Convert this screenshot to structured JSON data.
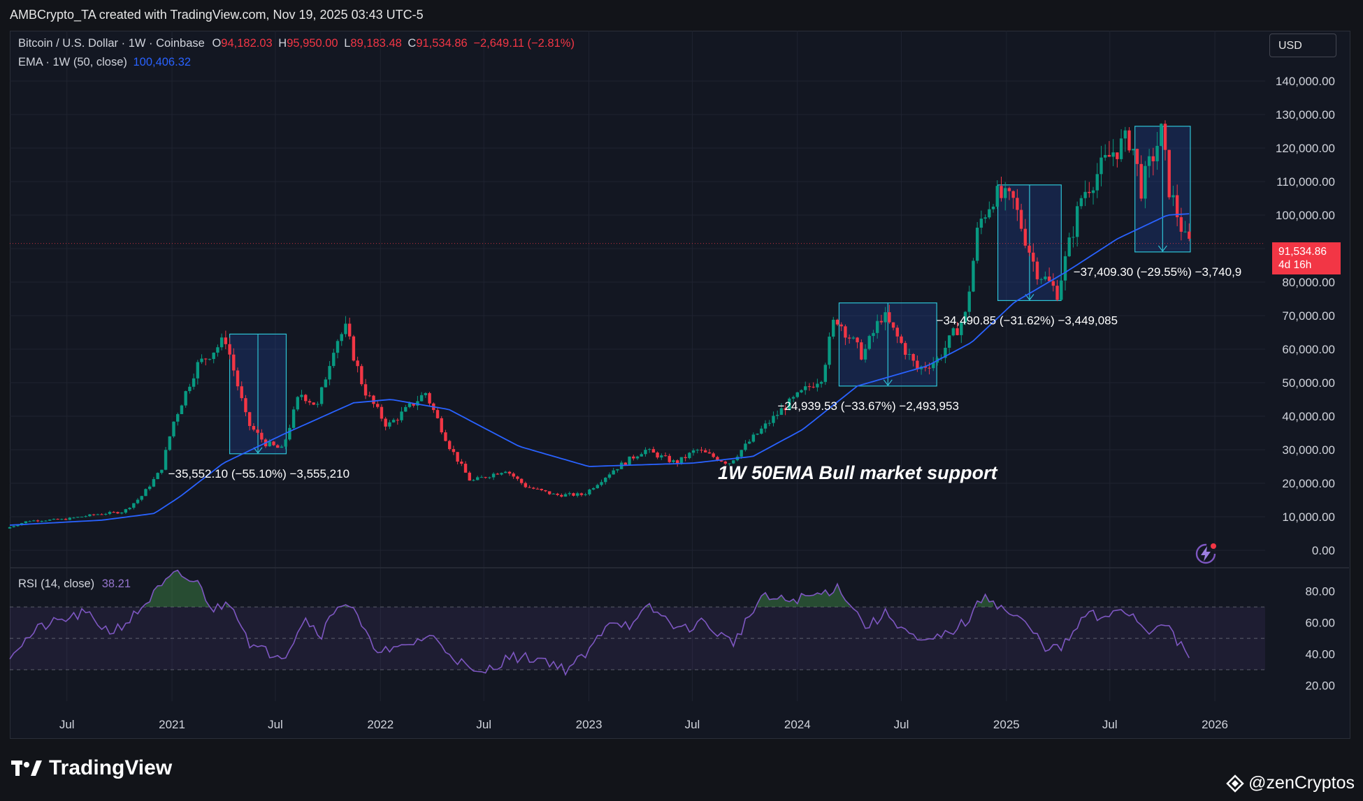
{
  "header": {
    "attribution": "AMBCrypto_TA created with TradingView.com, Nov 19, 2025 03:43 UTC-5"
  },
  "legend": {
    "symbol": "Bitcoin / U.S. Dollar · 1W · Coinbase",
    "open_label": "O",
    "open": "94,182.03",
    "high_label": "H",
    "high": "95,950.00",
    "low_label": "L",
    "low": "89,183.48",
    "close_label": "C",
    "close": "91,534.86",
    "change": "−2,649.11 (−2.81%)",
    "ema_label": "EMA · 1W (50, close)",
    "ema_value": "100,406.32",
    "rsi_label": "RSI (14, close)",
    "rsi_value": "38.21"
  },
  "currency_button": "USD",
  "price_tag": {
    "price": "91,534.86",
    "countdown": "4d 16h"
  },
  "footer": {
    "logo_text": "TradingView",
    "handle": "@zenCryptos"
  },
  "colors": {
    "up": "#089981",
    "down": "#f23645",
    "ema": "#2962ff",
    "rsi": "#7e57c2",
    "box": "#2ec4d6"
  },
  "chart_data": [
    {
      "type": "candlestick",
      "series_name": "Bitcoin / U.S. Dollar",
      "x_range": [
        "2020-03-23",
        "2026-03-30"
      ],
      "y_range": [
        -5000,
        155000
      ],
      "y_ticks": [
        0,
        10000,
        20000,
        30000,
        40000,
        50000,
        60000,
        70000,
        80000,
        90000,
        100000,
        110000,
        120000,
        130000,
        140000
      ],
      "y_tick_labels": [
        "0.00",
        "10,000.00",
        "20,000.00",
        "30,000.00",
        "40,000.00",
        "50,000.00",
        "60,000.00",
        "70,000.00",
        "80,000.00",
        "90,000.00",
        "100,000.00",
        "110,000.00",
        "120,000.00",
        "130,000.00",
        "140,000.00"
      ],
      "x_ticks": [
        {
          "date": "2020-07-01",
          "label": "Jul"
        },
        {
          "date": "2021-01-01",
          "label": "2021"
        },
        {
          "date": "2021-07-01",
          "label": "Jul"
        },
        {
          "date": "2022-01-01",
          "label": "2022"
        },
        {
          "date": "2022-07-01",
          "label": "Jul"
        },
        {
          "date": "2023-01-01",
          "label": "2023"
        },
        {
          "date": "2023-07-01",
          "label": "Jul"
        },
        {
          "date": "2024-01-01",
          "label": "2024"
        },
        {
          "date": "2024-07-01",
          "label": "Jul"
        },
        {
          "date": "2025-01-01",
          "label": "2025"
        },
        {
          "date": "2025-07-01",
          "label": "Jul"
        },
        {
          "date": "2026-01-01",
          "label": "2026"
        }
      ],
      "price_path": [
        [
          "2020-03-23",
          6500
        ],
        [
          "2020-05-01",
          8800
        ],
        [
          "2020-07-01",
          9200
        ],
        [
          "2020-09-01",
          10800
        ],
        [
          "2020-10-15",
          11500
        ],
        [
          "2020-11-15",
          16000
        ],
        [
          "2020-12-20",
          24000
        ],
        [
          "2021-01-10",
          38000
        ],
        [
          "2021-02-20",
          55000
        ],
        [
          "2021-04-12",
          63000
        ],
        [
          "2021-05-20",
          38000
        ],
        [
          "2021-06-20",
          32000
        ],
        [
          "2021-07-20",
          30000
        ],
        [
          "2021-08-20",
          47000
        ],
        [
          "2021-09-20",
          43000
        ],
        [
          "2021-10-20",
          62000
        ],
        [
          "2021-11-08",
          66000
        ],
        [
          "2021-12-10",
          48000
        ],
        [
          "2022-01-20",
          37000
        ],
        [
          "2022-03-28",
          47000
        ],
        [
          "2022-05-09",
          31000
        ],
        [
          "2022-06-15",
          20500
        ],
        [
          "2022-08-15",
          24000
        ],
        [
          "2022-09-20",
          19000
        ],
        [
          "2022-11-10",
          16500
        ],
        [
          "2022-12-30",
          16600
        ],
        [
          "2023-02-20",
          24000
        ],
        [
          "2023-04-15",
          30000
        ],
        [
          "2023-06-10",
          26000
        ],
        [
          "2023-07-15",
          30000
        ],
        [
          "2023-09-10",
          26000
        ],
        [
          "2023-10-25",
          34000
        ],
        [
          "2023-12-15",
          42500
        ],
        [
          "2024-02-20",
          52000
        ],
        [
          "2024-03-14",
          70000
        ],
        [
          "2024-05-01",
          58000
        ],
        [
          "2024-06-05",
          70500
        ],
        [
          "2024-08-05",
          54000
        ],
        [
          "2024-09-10",
          57000
        ],
        [
          "2024-10-28",
          70000
        ],
        [
          "2024-11-20",
          97000
        ],
        [
          "2024-12-17",
          106000
        ],
        [
          "2025-01-20",
          104000
        ],
        [
          "2025-02-28",
          84000
        ],
        [
          "2025-04-07",
          77000
        ],
        [
          "2025-05-20",
          106000
        ],
        [
          "2025-07-14",
          119000
        ],
        [
          "2025-08-14",
          123000
        ],
        [
          "2025-09-01",
          108000
        ],
        [
          "2025-10-06",
          124500
        ],
        [
          "2025-10-20",
          108000
        ],
        [
          "2025-11-19",
          91534.86
        ]
      ],
      "ema_path": [
        [
          "2020-03-23",
          7500
        ],
        [
          "2020-09-01",
          9000
        ],
        [
          "2020-12-01",
          11000
        ],
        [
          "2021-01-15",
          16000
        ],
        [
          "2021-04-01",
          26000
        ],
        [
          "2021-07-20",
          35000
        ],
        [
          "2021-11-15",
          44000
        ],
        [
          "2022-01-20",
          45000
        ],
        [
          "2022-05-01",
          42000
        ],
        [
          "2022-09-01",
          31000
        ],
        [
          "2023-01-01",
          25000
        ],
        [
          "2023-07-01",
          26000
        ],
        [
          "2023-10-15",
          28000
        ],
        [
          "2024-01-10",
          36000
        ],
        [
          "2024-04-15",
          49000
        ],
        [
          "2024-08-15",
          55000
        ],
        [
          "2024-11-01",
          62000
        ],
        [
          "2025-01-15",
          74000
        ],
        [
          "2025-04-15",
          83000
        ],
        [
          "2025-07-15",
          93000
        ],
        [
          "2025-10-10",
          100000
        ],
        [
          "2025-11-19",
          100406.32
        ]
      ],
      "measure_boxes": [
        {
          "from": "2021-04-12",
          "to": "2021-07-20",
          "high": 64500,
          "low": 28800,
          "label": "−35,552.10 (−55.10%) −3,555,210"
        },
        {
          "from": "2024-03-14",
          "to": "2024-09-01",
          "high": 73800,
          "low": 49000,
          "label": "−24,939.53 (−33.67%) −2,493,953"
        },
        {
          "from": "2024-12-17",
          "to": "2025-04-07",
          "high": 109000,
          "low": 74500,
          "label": "−34,490.85 (−31.62%) −3,449,085"
        },
        {
          "from": "2025-08-14",
          "to": "2025-11-19",
          "high": 126500,
          "low": 89000,
          "label": "−37,409.30 (−29.55%) −3,740,9"
        }
      ],
      "annotation": "1W 50EMA Bull market support"
    },
    {
      "type": "line",
      "series_name": "RSI (14, close)",
      "y_range": [
        10,
        95
      ],
      "y_ticks": [
        20,
        40,
        60,
        80
      ],
      "y_tick_labels": [
        "20.00",
        "40.00",
        "60.00",
        "80.00"
      ],
      "band": [
        30,
        70
      ],
      "midline": 50,
      "points": [
        [
          "2020-03-23",
          40
        ],
        [
          "2020-05-15",
          57
        ],
        [
          "2020-08-01",
          66
        ],
        [
          "2020-09-15",
          54
        ],
        [
          "2020-10-20",
          62
        ],
        [
          "2020-12-05",
          80
        ],
        [
          "2021-01-08",
          91
        ],
        [
          "2021-02-15",
          85
        ],
        [
          "2021-03-15",
          68
        ],
        [
          "2021-04-15",
          74
        ],
        [
          "2021-05-20",
          45
        ],
        [
          "2021-06-20",
          41
        ],
        [
          "2021-07-20",
          40
        ],
        [
          "2021-08-20",
          63
        ],
        [
          "2021-09-20",
          53
        ],
        [
          "2021-10-20",
          73
        ],
        [
          "2021-11-10",
          71
        ],
        [
          "2021-12-15",
          46
        ],
        [
          "2022-01-20",
          41
        ],
        [
          "2022-03-28",
          52
        ],
        [
          "2022-05-15",
          37
        ],
        [
          "2022-06-18",
          26
        ],
        [
          "2022-08-15",
          38
        ],
        [
          "2022-10-15",
          37
        ],
        [
          "2022-11-20",
          30
        ],
        [
          "2022-12-30",
          40
        ],
        [
          "2023-02-05",
          62
        ],
        [
          "2023-03-20",
          58
        ],
        [
          "2023-04-15",
          70
        ],
        [
          "2023-06-15",
          55
        ],
        [
          "2023-07-15",
          61
        ],
        [
          "2023-09-10",
          47
        ],
        [
          "2023-10-30",
          76
        ],
        [
          "2023-12-15",
          74
        ],
        [
          "2024-02-10",
          78
        ],
        [
          "2024-03-14",
          83
        ],
        [
          "2024-05-01",
          57
        ],
        [
          "2024-06-05",
          66
        ],
        [
          "2024-08-05",
          46
        ],
        [
          "2024-09-15",
          52
        ],
        [
          "2024-10-28",
          62
        ],
        [
          "2024-11-25",
          79
        ],
        [
          "2024-12-20",
          70
        ],
        [
          "2025-02-01",
          60
        ],
        [
          "2025-03-10",
          45
        ],
        [
          "2025-04-07",
          43
        ],
        [
          "2025-05-25",
          67
        ],
        [
          "2025-06-20",
          60
        ],
        [
          "2025-07-14",
          70
        ],
        [
          "2025-08-10",
          65
        ],
        [
          "2025-09-05",
          54
        ],
        [
          "2025-10-05",
          62
        ],
        [
          "2025-10-25",
          48
        ],
        [
          "2025-11-19",
          38.21
        ]
      ]
    }
  ]
}
